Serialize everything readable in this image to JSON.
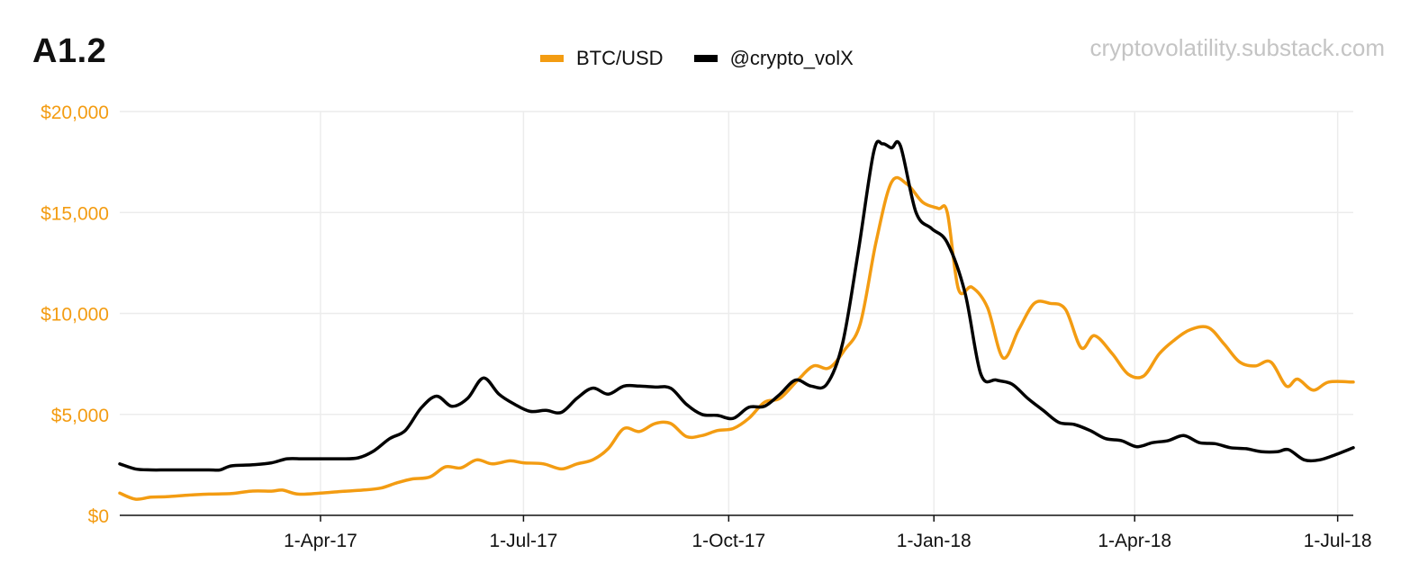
{
  "header": {
    "tag": "A1.2",
    "source": "cryptovolatility.substack.com"
  },
  "chart_data": {
    "type": "line",
    "ylim": [
      0,
      20000
    ],
    "y_ticks": [
      {
        "value": 0,
        "label": "$0"
      },
      {
        "value": 5000,
        "label": "$5,000"
      },
      {
        "value": 10000,
        "label": "$10,000"
      },
      {
        "value": 15000,
        "label": "$15,000"
      },
      {
        "value": 20000,
        "label": "$20,000"
      }
    ],
    "xlim": [
      "2017-01-01",
      "2018-07-08"
    ],
    "x_ticks": [
      {
        "date": "2017-04-01",
        "label": "1-Apr-17"
      },
      {
        "date": "2017-07-01",
        "label": "1-Jul-17"
      },
      {
        "date": "2017-10-01",
        "label": "1-Oct-17"
      },
      {
        "date": "2018-01-01",
        "label": "1-Jan-18"
      },
      {
        "date": "2018-04-01",
        "label": "1-Apr-18"
      },
      {
        "date": "2018-07-01",
        "label": "1-Jul-18"
      }
    ],
    "grid": true,
    "legend": "top-center",
    "series": [
      {
        "name": "BTC/USD",
        "color": "#f39c12",
        "points": [
          [
            "2017-01-01",
            1100
          ],
          [
            "2017-01-08",
            800
          ],
          [
            "2017-01-15",
            900
          ],
          [
            "2017-01-22",
            920
          ],
          [
            "2017-02-01",
            1000
          ],
          [
            "2017-02-10",
            1050
          ],
          [
            "2017-02-20",
            1080
          ],
          [
            "2017-03-01",
            1200
          ],
          [
            "2017-03-10",
            1200
          ],
          [
            "2017-03-15",
            1250
          ],
          [
            "2017-03-22",
            1050
          ],
          [
            "2017-04-01",
            1100
          ],
          [
            "2017-04-10",
            1180
          ],
          [
            "2017-04-20",
            1250
          ],
          [
            "2017-04-28",
            1350
          ],
          [
            "2017-05-05",
            1600
          ],
          [
            "2017-05-12",
            1800
          ],
          [
            "2017-05-20",
            1900
          ],
          [
            "2017-05-27",
            2400
          ],
          [
            "2017-06-03",
            2350
          ],
          [
            "2017-06-10",
            2750
          ],
          [
            "2017-06-17",
            2550
          ],
          [
            "2017-06-25",
            2700
          ],
          [
            "2017-07-01",
            2600
          ],
          [
            "2017-07-10",
            2550
          ],
          [
            "2017-07-18",
            2300
          ],
          [
            "2017-07-25",
            2550
          ],
          [
            "2017-08-01",
            2750
          ],
          [
            "2017-08-08",
            3300
          ],
          [
            "2017-08-15",
            4300
          ],
          [
            "2017-08-22",
            4150
          ],
          [
            "2017-08-29",
            4550
          ],
          [
            "2017-09-05",
            4550
          ],
          [
            "2017-09-12",
            3900
          ],
          [
            "2017-09-19",
            3950
          ],
          [
            "2017-09-26",
            4200
          ],
          [
            "2017-10-03",
            4300
          ],
          [
            "2017-10-10",
            4800
          ],
          [
            "2017-10-17",
            5600
          ],
          [
            "2017-10-24",
            5800
          ],
          [
            "2017-11-01",
            6700
          ],
          [
            "2017-11-08",
            7400
          ],
          [
            "2017-11-15",
            7300
          ],
          [
            "2017-11-22",
            8200
          ],
          [
            "2017-11-29",
            9500
          ],
          [
            "2017-12-06",
            13500
          ],
          [
            "2017-12-13",
            16500
          ],
          [
            "2017-12-20",
            16400
          ],
          [
            "2017-12-27",
            15500
          ],
          [
            "2018-01-03",
            15200
          ],
          [
            "2018-01-07",
            15000
          ],
          [
            "2018-01-12",
            11200
          ],
          [
            "2018-01-18",
            11300
          ],
          [
            "2018-01-25",
            10300
          ],
          [
            "2018-02-01",
            7800
          ],
          [
            "2018-02-08",
            9200
          ],
          [
            "2018-02-15",
            10500
          ],
          [
            "2018-02-22",
            10500
          ],
          [
            "2018-03-01",
            10200
          ],
          [
            "2018-03-08",
            8300
          ],
          [
            "2018-03-14",
            8900
          ],
          [
            "2018-03-22",
            8000
          ],
          [
            "2018-03-29",
            7000
          ],
          [
            "2018-04-05",
            6900
          ],
          [
            "2018-04-12",
            8000
          ],
          [
            "2018-04-19",
            8700
          ],
          [
            "2018-04-26",
            9200
          ],
          [
            "2018-05-04",
            9300
          ],
          [
            "2018-05-11",
            8500
          ],
          [
            "2018-05-18",
            7600
          ],
          [
            "2018-05-25",
            7400
          ],
          [
            "2018-06-01",
            7600
          ],
          [
            "2018-06-08",
            6400
          ],
          [
            "2018-06-13",
            6750
          ],
          [
            "2018-06-20",
            6200
          ],
          [
            "2018-06-27",
            6600
          ],
          [
            "2018-07-08",
            6600
          ]
        ]
      },
      {
        "name": "@crypto_volX",
        "color": "#000000",
        "points": [
          [
            "2017-01-01",
            2550
          ],
          [
            "2017-01-08",
            2300
          ],
          [
            "2017-01-15",
            2250
          ],
          [
            "2017-01-22",
            2250
          ],
          [
            "2017-02-01",
            2250
          ],
          [
            "2017-02-10",
            2250
          ],
          [
            "2017-02-15",
            2250
          ],
          [
            "2017-02-20",
            2450
          ],
          [
            "2017-03-01",
            2500
          ],
          [
            "2017-03-10",
            2600
          ],
          [
            "2017-03-17",
            2800
          ],
          [
            "2017-03-24",
            2800
          ],
          [
            "2017-04-01",
            2800
          ],
          [
            "2017-04-10",
            2800
          ],
          [
            "2017-04-18",
            2850
          ],
          [
            "2017-04-25",
            3200
          ],
          [
            "2017-05-02",
            3800
          ],
          [
            "2017-05-09",
            4200
          ],
          [
            "2017-05-16",
            5300
          ],
          [
            "2017-05-23",
            5900
          ],
          [
            "2017-05-30",
            5400
          ],
          [
            "2017-06-06",
            5800
          ],
          [
            "2017-06-13",
            6800
          ],
          [
            "2017-06-20",
            6000
          ],
          [
            "2017-06-27",
            5500
          ],
          [
            "2017-07-04",
            5150
          ],
          [
            "2017-07-11",
            5200
          ],
          [
            "2017-07-18",
            5100
          ],
          [
            "2017-07-25",
            5800
          ],
          [
            "2017-08-01",
            6300
          ],
          [
            "2017-08-08",
            6000
          ],
          [
            "2017-08-15",
            6400
          ],
          [
            "2017-08-22",
            6400
          ],
          [
            "2017-08-29",
            6350
          ],
          [
            "2017-09-05",
            6300
          ],
          [
            "2017-09-12",
            5500
          ],
          [
            "2017-09-19",
            5000
          ],
          [
            "2017-09-26",
            4950
          ],
          [
            "2017-10-03",
            4800
          ],
          [
            "2017-10-10",
            5350
          ],
          [
            "2017-10-17",
            5400
          ],
          [
            "2017-10-24",
            6000
          ],
          [
            "2017-10-31",
            6700
          ],
          [
            "2017-11-07",
            6400
          ],
          [
            "2017-11-14",
            6500
          ],
          [
            "2017-11-21",
            8500
          ],
          [
            "2017-11-28",
            13000
          ],
          [
            "2017-12-05",
            18000
          ],
          [
            "2017-12-09",
            18400
          ],
          [
            "2017-12-13",
            18200
          ],
          [
            "2017-12-17",
            18300
          ],
          [
            "2017-12-24",
            15000
          ],
          [
            "2017-12-31",
            14200
          ],
          [
            "2018-01-07",
            13500
          ],
          [
            "2018-01-15",
            11000
          ],
          [
            "2018-01-22",
            7000
          ],
          [
            "2018-01-29",
            6700
          ],
          [
            "2018-02-05",
            6500
          ],
          [
            "2018-02-12",
            5800
          ],
          [
            "2018-02-19",
            5200
          ],
          [
            "2018-02-26",
            4600
          ],
          [
            "2018-03-05",
            4500
          ],
          [
            "2018-03-12",
            4200
          ],
          [
            "2018-03-19",
            3800
          ],
          [
            "2018-03-26",
            3700
          ],
          [
            "2018-04-02",
            3400
          ],
          [
            "2018-04-09",
            3600
          ],
          [
            "2018-04-16",
            3700
          ],
          [
            "2018-04-23",
            3950
          ],
          [
            "2018-04-30",
            3600
          ],
          [
            "2018-05-07",
            3550
          ],
          [
            "2018-05-14",
            3350
          ],
          [
            "2018-05-21",
            3300
          ],
          [
            "2018-05-28",
            3150
          ],
          [
            "2018-06-04",
            3150
          ],
          [
            "2018-06-09",
            3250
          ],
          [
            "2018-06-16",
            2750
          ],
          [
            "2018-06-23",
            2750
          ],
          [
            "2018-06-30",
            3000
          ],
          [
            "2018-07-08",
            3350
          ]
        ]
      }
    ]
  }
}
